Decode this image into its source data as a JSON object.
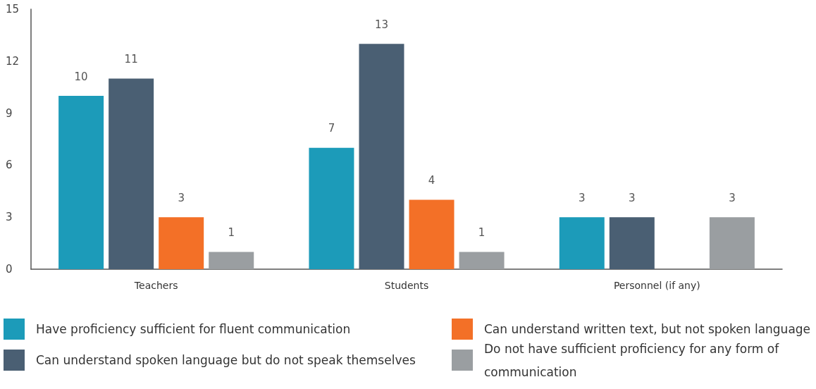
{
  "chart_data": {
    "type": "bar",
    "categories": [
      "Teachers",
      "Students",
      "Personnel (if any)"
    ],
    "series": [
      {
        "name": "Have proficiency sufficient for fluent communication",
        "color": "#1c9bb9",
        "values": [
          10,
          7,
          3
        ]
      },
      {
        "name": "Can understand spoken language but do not speak themselves",
        "color": "#4a5f73",
        "values": [
          11,
          13,
          3
        ]
      },
      {
        "name": "Can understand written text, but not spoken language",
        "color": "#f37027",
        "values": [
          3,
          4,
          null
        ]
      },
      {
        "name": "Do not have sufficient proficiency for any form of communication",
        "color": "#9a9ea1",
        "values": [
          1,
          1,
          3
        ]
      }
    ],
    "ylim": [
      0,
      15
    ],
    "yticks": [
      0,
      3,
      6,
      9,
      12,
      15
    ],
    "grid": false,
    "legend": "bottom",
    "data_labels": true
  }
}
